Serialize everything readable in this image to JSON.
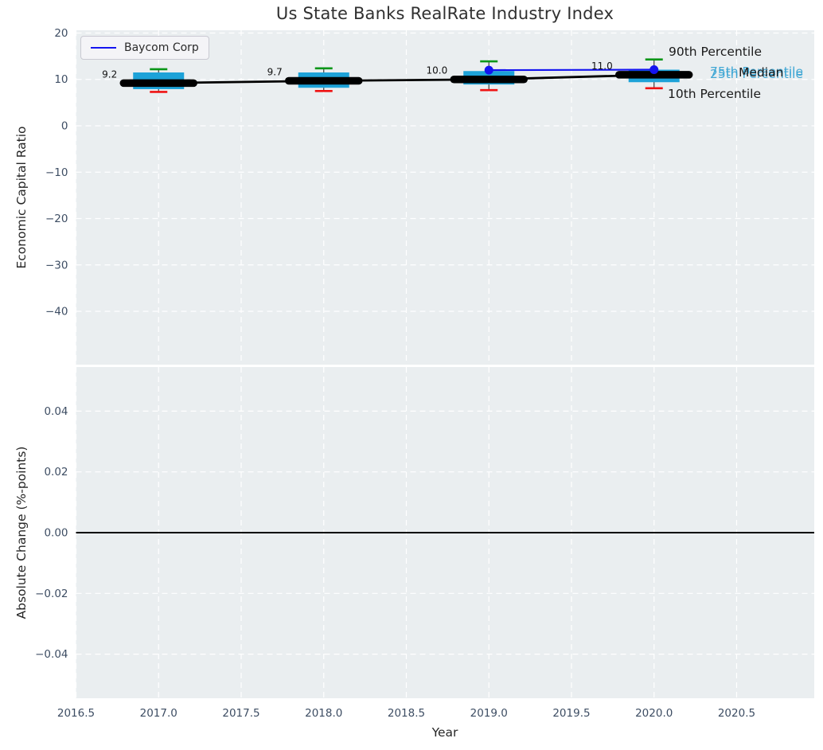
{
  "header": {
    "title": "Us State Banks RealRate Industry Index"
  },
  "legend": {
    "label": "Baycom Corp",
    "line_color": "#1414f0"
  },
  "annotations": {
    "p90": "90th Percentile",
    "p75": "75th Percentile",
    "median": "Median",
    "p25": "25th Percentile",
    "p10": "10th Percentile"
  },
  "colors": {
    "axes_bg": "#eaeef0",
    "grid": "#ffffff",
    "box_fill": "#1da2d8",
    "whisker": "#3c3c3c",
    "cap_top": "#0a9618",
    "cap_bottom": "#ef1212",
    "median_line": "#000000",
    "series_line": "#1414f0",
    "tick_label": "#3d4d63",
    "axis_label": "#262626",
    "title": "#303030",
    "zero_line": "#000000",
    "annotation_teal": "#35a3d3",
    "annotation_black": "#1a1a1a"
  },
  "chart_data": [
    {
      "type": "boxplot+line",
      "title": "Us State Banks RealRate Industry Index",
      "ylabel": "Economic Capital Ratio",
      "xlim": [
        2016.5,
        2020.97
      ],
      "ylim": [
        -51.5,
        20.6
      ],
      "yticks": [
        20,
        10,
        0,
        -10,
        -20,
        -30,
        -40
      ],
      "ytick_labels": [
        "20",
        "10",
        "0",
        "−10",
        "−20",
        "−30",
        "−40"
      ],
      "grid": true,
      "legend_position": "upper left",
      "boxes": [
        {
          "year": 2017,
          "p10": 7.3,
          "p25": 7.9,
          "median": 9.2,
          "p75": 11.5,
          "p90": 12.2,
          "label": "9.2"
        },
        {
          "year": 2018,
          "p10": 7.5,
          "p25": 8.2,
          "median": 9.7,
          "p75": 11.5,
          "p90": 12.4,
          "label": "9.7"
        },
        {
          "year": 2019,
          "p10": 7.7,
          "p25": 8.9,
          "median": 10.0,
          "p75": 11.8,
          "p90": 13.9,
          "label": "10.0"
        },
        {
          "year": 2020,
          "p10": 8.1,
          "p25": 9.4,
          "median": 11.0,
          "p75": 12.1,
          "p90": 14.3,
          "label": "11.0"
        }
      ],
      "series": [
        {
          "name": "Baycom Corp",
          "x": [
            2019,
            2020
          ],
          "values": [
            12.0,
            12.1
          ]
        }
      ]
    },
    {
      "type": "line",
      "ylabel": "Absolute Change (%-points)",
      "xlabel": "Year",
      "xlim": [
        2016.5,
        2020.97
      ],
      "ylim": [
        -0.0545,
        0.0545
      ],
      "yticks": [
        0.04,
        0.02,
        0.0,
        -0.02,
        -0.04
      ],
      "ytick_labels": [
        "0.04",
        "0.02",
        "0.00",
        "−0.02",
        "−0.04"
      ],
      "xticks": [
        2016.5,
        2017.0,
        2017.5,
        2018.0,
        2018.5,
        2019.0,
        2019.5,
        2020.0,
        2020.5
      ],
      "xtick_labels": [
        "2016.5",
        "2017.0",
        "2017.5",
        "2018.0",
        "2018.5",
        "2019.0",
        "2019.5",
        "2020.0",
        "2020.5"
      ],
      "grid": true,
      "zero_line": 0.0
    }
  ]
}
